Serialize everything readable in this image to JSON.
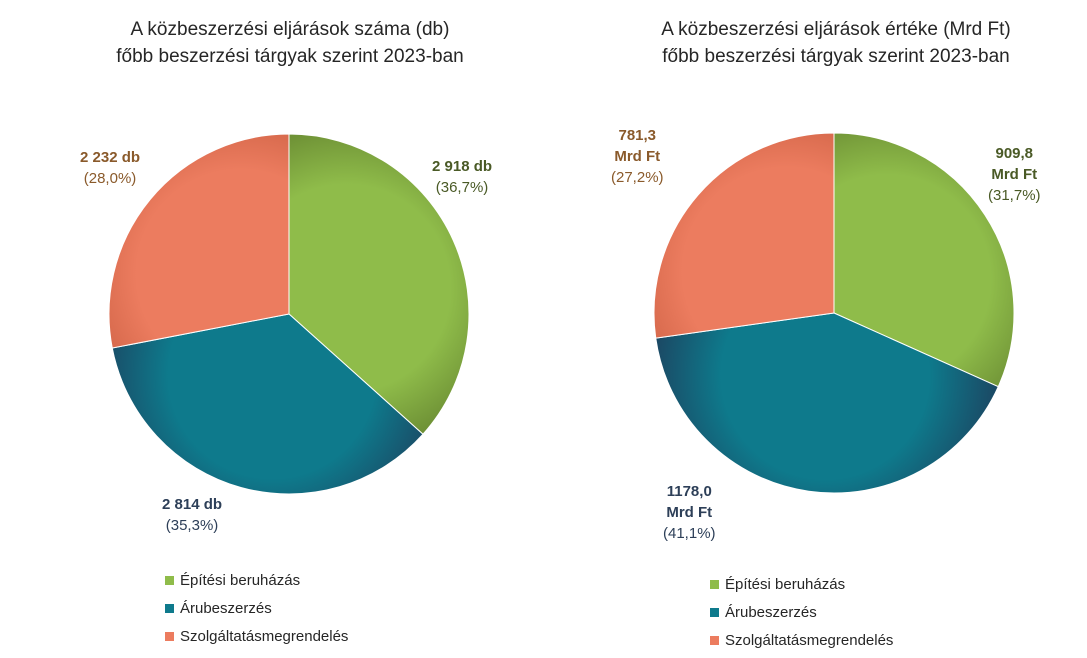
{
  "colors": {
    "epitesi": "#8fbc4a",
    "aru": "#0e7a8c",
    "szolg": "#ec7c5f",
    "label_epitesi": "#4a5a26",
    "label_aru": "#2d3f58",
    "label_szolg": "#8a5a2b"
  },
  "legend": {
    "epitesi": "Építési beruházás",
    "aru": "Árubeszerzés",
    "szolg": "Szolgáltatásmegrendelés"
  },
  "left": {
    "title_line1": "A közbeszerzési eljárások száma (db)",
    "title_line2": "főbb beszerzési tárgyak szerint 2023-ban",
    "labels": {
      "epitesi_value": "2 918 db",
      "epitesi_pct": "(36,7%)",
      "aru_value": "2 814 db",
      "aru_pct": "(35,3%)",
      "szolg_value": "2 232 db",
      "szolg_pct": "(28,0%)"
    }
  },
  "right": {
    "title_line1": "A közbeszerzési eljárások értéke (Mrd Ft)",
    "title_line2": "főbb beszerzési tárgyak szerint 2023-ban",
    "labels": {
      "epitesi_value_1": "909,8",
      "epitesi_value_2": "Mrd Ft",
      "epitesi_pct": "(31,7%)",
      "aru_value_1": "1178,0",
      "aru_value_2": "Mrd Ft",
      "aru_pct": "(41,1%)",
      "szolg_value_1": "781,3",
      "szolg_value_2": "Mrd Ft",
      "szolg_pct": "(27,2%)"
    }
  },
  "chart_data": [
    {
      "type": "pie",
      "title": "A közbeszerzési eljárások száma (db) főbb beszerzési tárgyak szerint 2023-ban",
      "categories": [
        "Építési beruházás",
        "Árubeszerzés",
        "Szolgáltatásmegrendelés"
      ],
      "values": [
        2918,
        2814,
        2232
      ],
      "percentages": [
        36.7,
        35.3,
        28.0
      ],
      "unit": "db",
      "legend_position": "bottom"
    },
    {
      "type": "pie",
      "title": "A közbeszerzési eljárások értéke (Mrd Ft) főbb beszerzési tárgyak szerint 2023-ban",
      "categories": [
        "Építési beruházás",
        "Árubeszerzés",
        "Szolgáltatásmegrendelés"
      ],
      "values": [
        909.8,
        1178.0,
        781.3
      ],
      "percentages": [
        31.7,
        41.1,
        27.2
      ],
      "unit": "Mrd Ft",
      "legend_position": "bottom"
    }
  ]
}
